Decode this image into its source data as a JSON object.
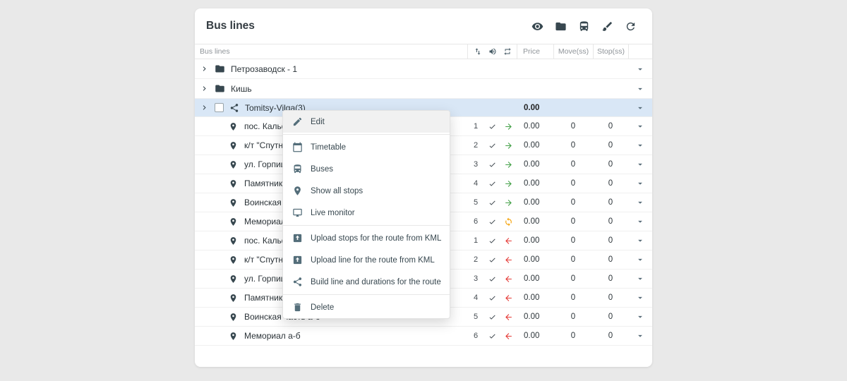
{
  "panel": {
    "title": "Bus lines",
    "toolbar": [
      {
        "name": "visibility",
        "icon": "eye-icon"
      },
      {
        "name": "folders",
        "icon": "folder-icon"
      },
      {
        "name": "buses",
        "icon": "bus-icon"
      },
      {
        "name": "brush",
        "icon": "brush-icon"
      },
      {
        "name": "refresh",
        "icon": "refresh-icon"
      }
    ]
  },
  "table": {
    "name_header": "Bus lines",
    "price_header": "Price",
    "move_header": "Move(ss)",
    "stop_header": "Stop(ss)"
  },
  "tree": {
    "folders": [
      {
        "label": "Петрозаводск - 1"
      },
      {
        "label": "Кишь"
      }
    ],
    "route": {
      "label": "Tomitsy-Vilga(3)",
      "price": "0.00"
    },
    "stops": [
      {
        "name": "пос. Кальфа",
        "num": "1",
        "dir": "forward",
        "price": "0.00",
        "move": "0",
        "stop": "0"
      },
      {
        "name": "к/т \"Спутник",
        "num": "2",
        "dir": "forward",
        "price": "0.00",
        "move": "0",
        "stop": "0"
      },
      {
        "name": "ул. Горпище",
        "num": "3",
        "dir": "forward",
        "price": "0.00",
        "move": "0",
        "stop": "0"
      },
      {
        "name": "Памятник во",
        "num": "4",
        "dir": "forward",
        "price": "0.00",
        "move": "0",
        "stop": "0"
      },
      {
        "name": "Воинская ча",
        "num": "5",
        "dir": "forward",
        "price": "0.00",
        "move": "0",
        "stop": "0"
      },
      {
        "name": "Мемориал а",
        "num": "6",
        "dir": "sync",
        "price": "0.00",
        "move": "0",
        "stop": "0"
      },
      {
        "name": "пос. Кальфа",
        "num": "1",
        "dir": "back",
        "price": "0.00",
        "move": "0",
        "stop": "0"
      },
      {
        "name": "к/т \"Спутник",
        "num": "2",
        "dir": "back",
        "price": "0.00",
        "move": "0",
        "stop": "0"
      },
      {
        "name": "ул. Горпище",
        "num": "3",
        "dir": "back",
        "price": "0.00",
        "move": "0",
        "stop": "0"
      },
      {
        "name": "Памятник во",
        "num": "4",
        "dir": "back",
        "price": "0.00",
        "move": "0",
        "stop": "0"
      },
      {
        "name": "Воинская часть а-б",
        "num": "5",
        "dir": "back",
        "price": "0.00",
        "move": "0",
        "stop": "0"
      },
      {
        "name": "Мемориал а-б",
        "num": "6",
        "dir": "back",
        "price": "0.00",
        "move": "0",
        "stop": "0"
      }
    ]
  },
  "context_menu": {
    "items": [
      {
        "key": "edit",
        "label": "Edit",
        "icon": "pencil-icon",
        "highlighted": true,
        "divider_after": true
      },
      {
        "key": "timetable",
        "label": "Timetable",
        "icon": "calendar-icon"
      },
      {
        "key": "buses",
        "label": "Buses",
        "icon": "bus-icon"
      },
      {
        "key": "show-all-stops",
        "label": "Show all stops",
        "icon": "pin-icon"
      },
      {
        "key": "live-monitor",
        "label": "Live monitor",
        "icon": "monitor-icon",
        "divider_after": true
      },
      {
        "key": "upload-stops-kml",
        "label": "Upload stops for the route from KML",
        "icon": "upload-icon"
      },
      {
        "key": "upload-line-kml",
        "label": "Upload line for the route from KML",
        "icon": "upload-icon"
      },
      {
        "key": "build-line",
        "label": "Build line and durations for the route",
        "icon": "route-icon",
        "divider_after": true
      },
      {
        "key": "delete",
        "label": "Delete",
        "icon": "trash-icon"
      }
    ]
  },
  "colors": {
    "forward_arrow": "#43a047",
    "back_arrow": "#e53935",
    "sync_arrow": "#f59f00",
    "row_highlight": "#d9e7f6",
    "icon_dark": "#37474f"
  }
}
